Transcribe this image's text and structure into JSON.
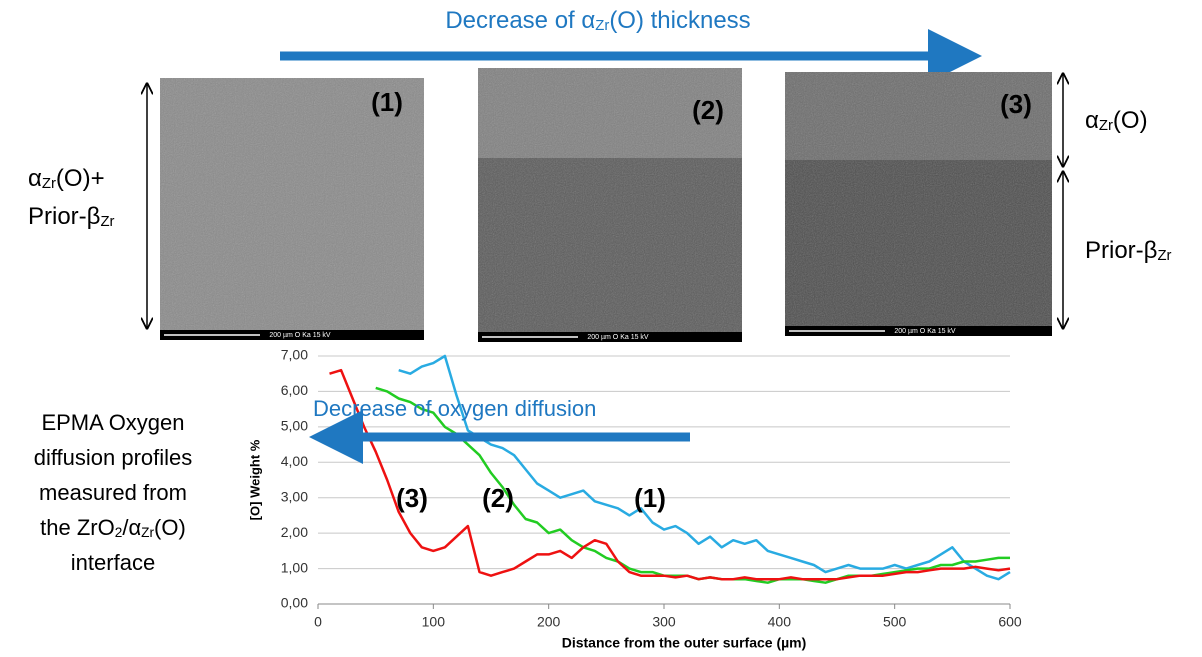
{
  "top_caption": [
    {
      "text": "Decrease of α"
    },
    {
      "sub": "Zr"
    },
    {
      "text": "(O) thickness"
    }
  ],
  "micrographs": [
    {
      "label": "(1)",
      "scale_bar": "200 µm  O Ka  15 kV"
    },
    {
      "label": "(2)",
      "scale_bar": "200 µm  O Ka  15 kV"
    },
    {
      "label": "(3)",
      "scale_bar": "200 µm  O Ka  15 kV"
    }
  ],
  "left_label": [
    [
      {
        "text": "α"
      },
      {
        "sub": "Zr"
      },
      {
        "text": "(O)+"
      }
    ],
    [
      {
        "text": "Prior-β"
      },
      {
        "sub": "Zr"
      }
    ]
  ],
  "right_labels": [
    [
      {
        "text": "α"
      },
      {
        "sub": "Zr"
      },
      {
        "text": "(O)"
      }
    ],
    [
      {
        "text": "Prior-β"
      },
      {
        "sub": "Zr"
      }
    ]
  ],
  "caption_lines": [
    [
      {
        "text": "EPMA Oxygen"
      }
    ],
    [
      {
        "text": "diffusion profiles"
      }
    ],
    [
      {
        "text": "measured from"
      }
    ],
    [
      {
        "text": "the ZrO"
      },
      {
        "sub": "2"
      },
      {
        "text": "/α"
      },
      {
        "sub": "Zr"
      },
      {
        "text": "(O)"
      }
    ],
    [
      {
        "text": "interface"
      }
    ]
  ],
  "chart_data": {
    "type": "line",
    "annotation": "Decrease of oxygen diffusion",
    "x_label": "Distance from the outer surface (µm)",
    "y_label": "[O] Weight %",
    "xlim": [
      0,
      600
    ],
    "xticks": [
      0,
      100,
      200,
      300,
      400,
      500,
      600
    ],
    "ylim": [
      0,
      7
    ],
    "yticks": [
      {
        "value": 0,
        "label": "0,00"
      },
      {
        "value": 1,
        "label": "1,00"
      },
      {
        "value": 2,
        "label": "2,00"
      },
      {
        "value": 3,
        "label": "3,00"
      },
      {
        "value": 4,
        "label": "4,00"
      },
      {
        "value": 5,
        "label": "5,00"
      },
      {
        "value": 6,
        "label": "6,00"
      },
      {
        "value": 7,
        "label": "7,00"
      }
    ],
    "grid": true,
    "x": [
      10,
      20,
      30,
      40,
      50,
      60,
      70,
      80,
      90,
      100,
      110,
      120,
      130,
      140,
      150,
      160,
      170,
      180,
      190,
      200,
      210,
      220,
      230,
      240,
      250,
      260,
      270,
      280,
      290,
      300,
      310,
      320,
      330,
      340,
      350,
      360,
      370,
      380,
      390,
      400,
      410,
      420,
      430,
      440,
      450,
      460,
      470,
      480,
      490,
      500,
      510,
      520,
      530,
      540,
      550,
      560,
      570,
      580,
      590,
      600
    ],
    "series": [
      {
        "name": "(1)",
        "color": "#29abe2",
        "values": [
          null,
          null,
          null,
          null,
          null,
          null,
          6.6,
          6.5,
          6.7,
          6.8,
          7.0,
          5.9,
          4.9,
          4.7,
          4.5,
          4.4,
          4.2,
          3.8,
          3.4,
          3.2,
          3.0,
          3.1,
          3.2,
          2.9,
          2.8,
          2.7,
          2.5,
          2.7,
          2.3,
          2.1,
          2.2,
          2.0,
          1.7,
          1.9,
          1.6,
          1.8,
          1.7,
          1.8,
          1.5,
          1.4,
          1.3,
          1.2,
          1.1,
          0.9,
          1.0,
          1.1,
          1.0,
          1.0,
          1.0,
          1.1,
          1.0,
          1.1,
          1.2,
          1.4,
          1.6,
          1.2,
          1.0,
          0.8,
          0.7,
          0.9
        ]
      },
      {
        "name": "(2)",
        "color": "#22cc22",
        "values": [
          null,
          null,
          null,
          null,
          6.1,
          6.0,
          5.8,
          5.7,
          5.5,
          5.4,
          5.0,
          4.8,
          4.5,
          4.2,
          3.7,
          3.3,
          2.8,
          2.4,
          2.3,
          2.0,
          2.1,
          1.8,
          1.6,
          1.5,
          1.3,
          1.2,
          1.0,
          0.9,
          0.9,
          0.8,
          0.8,
          0.8,
          0.7,
          0.75,
          0.7,
          0.7,
          0.7,
          0.65,
          0.6,
          0.7,
          0.7,
          0.7,
          0.65,
          0.6,
          0.7,
          0.8,
          0.8,
          0.8,
          0.85,
          0.9,
          0.95,
          1.0,
          1.0,
          1.1,
          1.1,
          1.2,
          1.2,
          1.25,
          1.3,
          1.3
        ]
      },
      {
        "name": "(3)",
        "color": "#ee1111",
        "values": [
          6.5,
          6.6,
          5.8,
          5.0,
          4.3,
          3.5,
          2.6,
          2.0,
          1.6,
          1.5,
          1.6,
          1.9,
          2.2,
          0.9,
          0.8,
          0.9,
          1.0,
          1.2,
          1.4,
          1.4,
          1.5,
          1.3,
          1.6,
          1.8,
          1.7,
          1.2,
          0.9,
          0.8,
          0.8,
          0.8,
          0.75,
          0.8,
          0.7,
          0.75,
          0.7,
          0.7,
          0.75,
          0.7,
          0.7,
          0.7,
          0.75,
          0.7,
          0.7,
          0.7,
          0.7,
          0.75,
          0.8,
          0.8,
          0.8,
          0.85,
          0.9,
          0.9,
          0.95,
          1.0,
          1.0,
          1.0,
          1.05,
          1.0,
          0.95,
          1.0
        ]
      }
    ]
  }
}
